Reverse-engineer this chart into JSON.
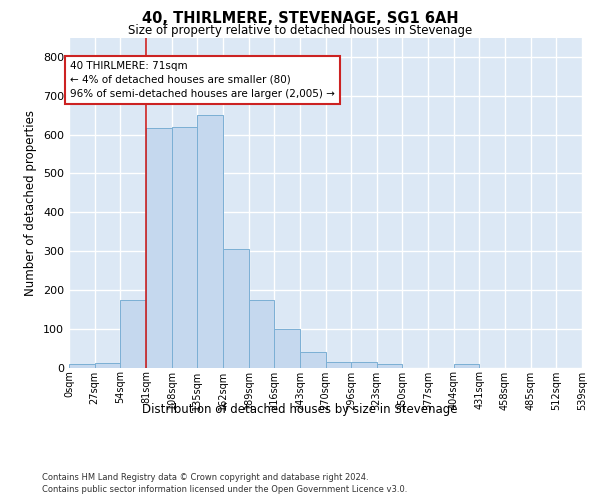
{
  "title": "40, THIRLMERE, STEVENAGE, SG1 6AH",
  "subtitle": "Size of property relative to detached houses in Stevenage",
  "xlabel": "Distribution of detached houses by size in Stevenage",
  "ylabel": "Number of detached properties",
  "bar_color": "#c5d8ee",
  "bar_edge_color": "#7bafd4",
  "background_color": "#dce8f5",
  "grid_color": "#ffffff",
  "bin_labels": [
    "0sqm",
    "27sqm",
    "54sqm",
    "81sqm",
    "108sqm",
    "135sqm",
    "162sqm",
    "189sqm",
    "216sqm",
    "243sqm",
    "270sqm",
    "296sqm",
    "323sqm",
    "350sqm",
    "377sqm",
    "404sqm",
    "431sqm",
    "458sqm",
    "485sqm",
    "512sqm",
    "539sqm"
  ],
  "values": [
    8,
    12,
    175,
    618,
    620,
    650,
    305,
    175,
    98,
    40,
    15,
    14,
    10,
    0,
    0,
    8,
    0,
    0,
    0,
    0
  ],
  "ylim": [
    0,
    850
  ],
  "yticks": [
    0,
    100,
    200,
    300,
    400,
    500,
    600,
    700,
    800
  ],
  "vline_bin_index": 3,
  "annotation_text": "40 THIRLMERE: 71sqm\n← 4% of detached houses are smaller (80)\n96% of semi-detached houses are larger (2,005) →",
  "footer_line1": "Contains HM Land Registry data © Crown copyright and database right 2024.",
  "footer_line2": "Contains public sector information licensed under the Open Government Licence v3.0."
}
